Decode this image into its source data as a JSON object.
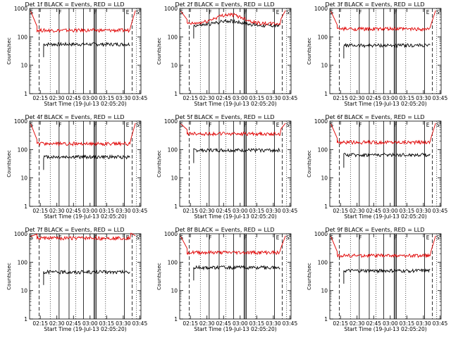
{
  "chart_data": [
    {
      "type": "line",
      "title": "Det 1f BLACK = Events, RED = LLD",
      "xlabel": "Start Time (19-Jul-13 02:05:20)",
      "ylabel": "Counts/sec",
      "ylog": true,
      "ylim": [
        1,
        1000
      ],
      "xticks": [
        "02:15",
        "02:30",
        "02:45",
        "03:00",
        "03:15",
        "03:30",
        "03:45"
      ],
      "yticks": [
        "1",
        "10",
        "100",
        "1000"
      ],
      "markers": [
        "S",
        "F",
        "F",
        "E",
        "S"
      ],
      "series": [
        {
          "name": "Events",
          "color": "#000000",
          "level": 55
        },
        {
          "name": "LLD",
          "color": "#e00000",
          "level": 170
        }
      ]
    },
    {
      "type": "line",
      "title": "Det 2f BLACK = Events, RED = LLD",
      "xlabel": "Start Time (19-Jul-13 02:05:20)",
      "ylabel": "Counts/sec",
      "ylog": true,
      "ylim": [
        1,
        1000
      ],
      "xticks": [
        "02:15",
        "02:30",
        "02:45",
        "03:00",
        "03:15",
        "03:30",
        "03:45"
      ],
      "yticks": [
        "1",
        "10",
        "100",
        "1000"
      ],
      "markers": [
        "S",
        "F",
        "F",
        "E",
        "S"
      ],
      "series": [
        {
          "name": "Events",
          "color": "#000000",
          "level": 250
        },
        {
          "name": "LLD",
          "color": "#e00000",
          "level": 290
        }
      ]
    },
    {
      "type": "line",
      "title": "Det 3f BLACK = Events, RED = LLD",
      "xlabel": "Start Time (19-Jul-13 02:05:20)",
      "ylabel": "Counts/sec",
      "ylog": true,
      "ylim": [
        1,
        1000
      ],
      "xticks": [
        "02:15",
        "02:30",
        "02:45",
        "03:00",
        "03:15",
        "03:30",
        "03:45"
      ],
      "yticks": [
        "1",
        "10",
        "100",
        "1000"
      ],
      "markers": [
        "S",
        "F",
        "F",
        "E",
        "S"
      ],
      "series": [
        {
          "name": "Events",
          "color": "#000000",
          "level": 50
        },
        {
          "name": "LLD",
          "color": "#e00000",
          "level": 190
        }
      ]
    },
    {
      "type": "line",
      "title": "Det 4f BLACK = Events, RED = LLD",
      "xlabel": "Start Time (19-Jul-13 02:05:20)",
      "ylabel": "Counts/sec",
      "ylog": true,
      "ylim": [
        1,
        1000
      ],
      "xticks": [
        "02:15",
        "02:30",
        "02:45",
        "03:00",
        "03:15",
        "03:30",
        "03:45"
      ],
      "yticks": [
        "1",
        "10",
        "100",
        "1000"
      ],
      "markers": [
        "S",
        "F",
        "F",
        "E",
        "S"
      ],
      "series": [
        {
          "name": "Events",
          "color": "#000000",
          "level": 55
        },
        {
          "name": "LLD",
          "color": "#e00000",
          "level": 160
        }
      ]
    },
    {
      "type": "line",
      "title": "Det 5f BLACK = Events, RED = LLD",
      "xlabel": "Start Time (19-Jul-13 02:05:20)",
      "ylabel": "Counts/sec",
      "ylog": true,
      "ylim": [
        1,
        1000
      ],
      "xticks": [
        "02:15",
        "02:30",
        "02:45",
        "03:00",
        "03:15",
        "03:30",
        "03:45"
      ],
      "yticks": [
        "1",
        "10",
        "100",
        "1000"
      ],
      "markers": [
        "S",
        "F",
        "F",
        "E",
        "S"
      ],
      "series": [
        {
          "name": "Events",
          "color": "#000000",
          "level": 95
        },
        {
          "name": "LLD",
          "color": "#e00000",
          "level": 360
        }
      ]
    },
    {
      "type": "line",
      "title": "Det 6f BLACK = Events, RED = LLD",
      "xlabel": "Start Time (19-Jul-13 02:05:20)",
      "ylabel": "Counts/sec",
      "ylog": true,
      "ylim": [
        1,
        1000
      ],
      "xticks": [
        "02:15",
        "02:30",
        "02:45",
        "03:00",
        "03:15",
        "03:30",
        "03:45"
      ],
      "yticks": [
        "1",
        "10",
        "100",
        "1000"
      ],
      "markers": [
        "S",
        "F",
        "F",
        "E",
        "S"
      ],
      "series": [
        {
          "name": "Events",
          "color": "#000000",
          "level": 65
        },
        {
          "name": "LLD",
          "color": "#e00000",
          "level": 180
        }
      ]
    },
    {
      "type": "line",
      "title": "Det 7f BLACK = Events, RED = LLD",
      "xlabel": "Start Time (19-Jul-13 02:05:20)",
      "ylabel": "Counts/sec",
      "ylog": true,
      "ylim": [
        1,
        1000
      ],
      "xticks": [
        "02:15",
        "02:30",
        "02:45",
        "03:00",
        "03:15",
        "03:30",
        "03:45"
      ],
      "yticks": [
        "1",
        "10",
        "100",
        "1000"
      ],
      "markers": [
        "S",
        "F",
        "F",
        "E",
        "S"
      ],
      "series": [
        {
          "name": "Events",
          "color": "#000000",
          "level": 45
        },
        {
          "name": "LLD",
          "color": "#e00000",
          "level": 700
        }
      ]
    },
    {
      "type": "line",
      "title": "Det 8f BLACK = Events, RED = LLD",
      "xlabel": "Start Time (19-Jul-13 02:05:20)",
      "ylabel": "Counts/sec",
      "ylog": true,
      "ylim": [
        1,
        1000
      ],
      "xticks": [
        "02:15",
        "02:30",
        "02:45",
        "03:00",
        "03:15",
        "03:30",
        "03:45"
      ],
      "yticks": [
        "1",
        "10",
        "100",
        "1000"
      ],
      "markers": [
        "S",
        "F",
        "F",
        "E",
        "S"
      ],
      "series": [
        {
          "name": "Events",
          "color": "#000000",
          "level": 65
        },
        {
          "name": "LLD",
          "color": "#e00000",
          "level": 220
        }
      ]
    },
    {
      "type": "line",
      "title": "Det 9f BLACK = Events, RED = LLD",
      "xlabel": "Start Time (19-Jul-13 02:05:20)",
      "ylabel": "Counts/sec",
      "ylog": true,
      "ylim": [
        1,
        1000
      ],
      "xticks": [
        "02:15",
        "02:30",
        "02:45",
        "03:00",
        "03:15",
        "03:30",
        "03:45"
      ],
      "yticks": [
        "1",
        "10",
        "100",
        "1000"
      ],
      "markers": [
        "S",
        "F",
        "F",
        "E",
        "S"
      ],
      "series": [
        {
          "name": "Events",
          "color": "#000000",
          "level": 50
        },
        {
          "name": "LLD",
          "color": "#e00000",
          "level": 170
        }
      ]
    }
  ]
}
